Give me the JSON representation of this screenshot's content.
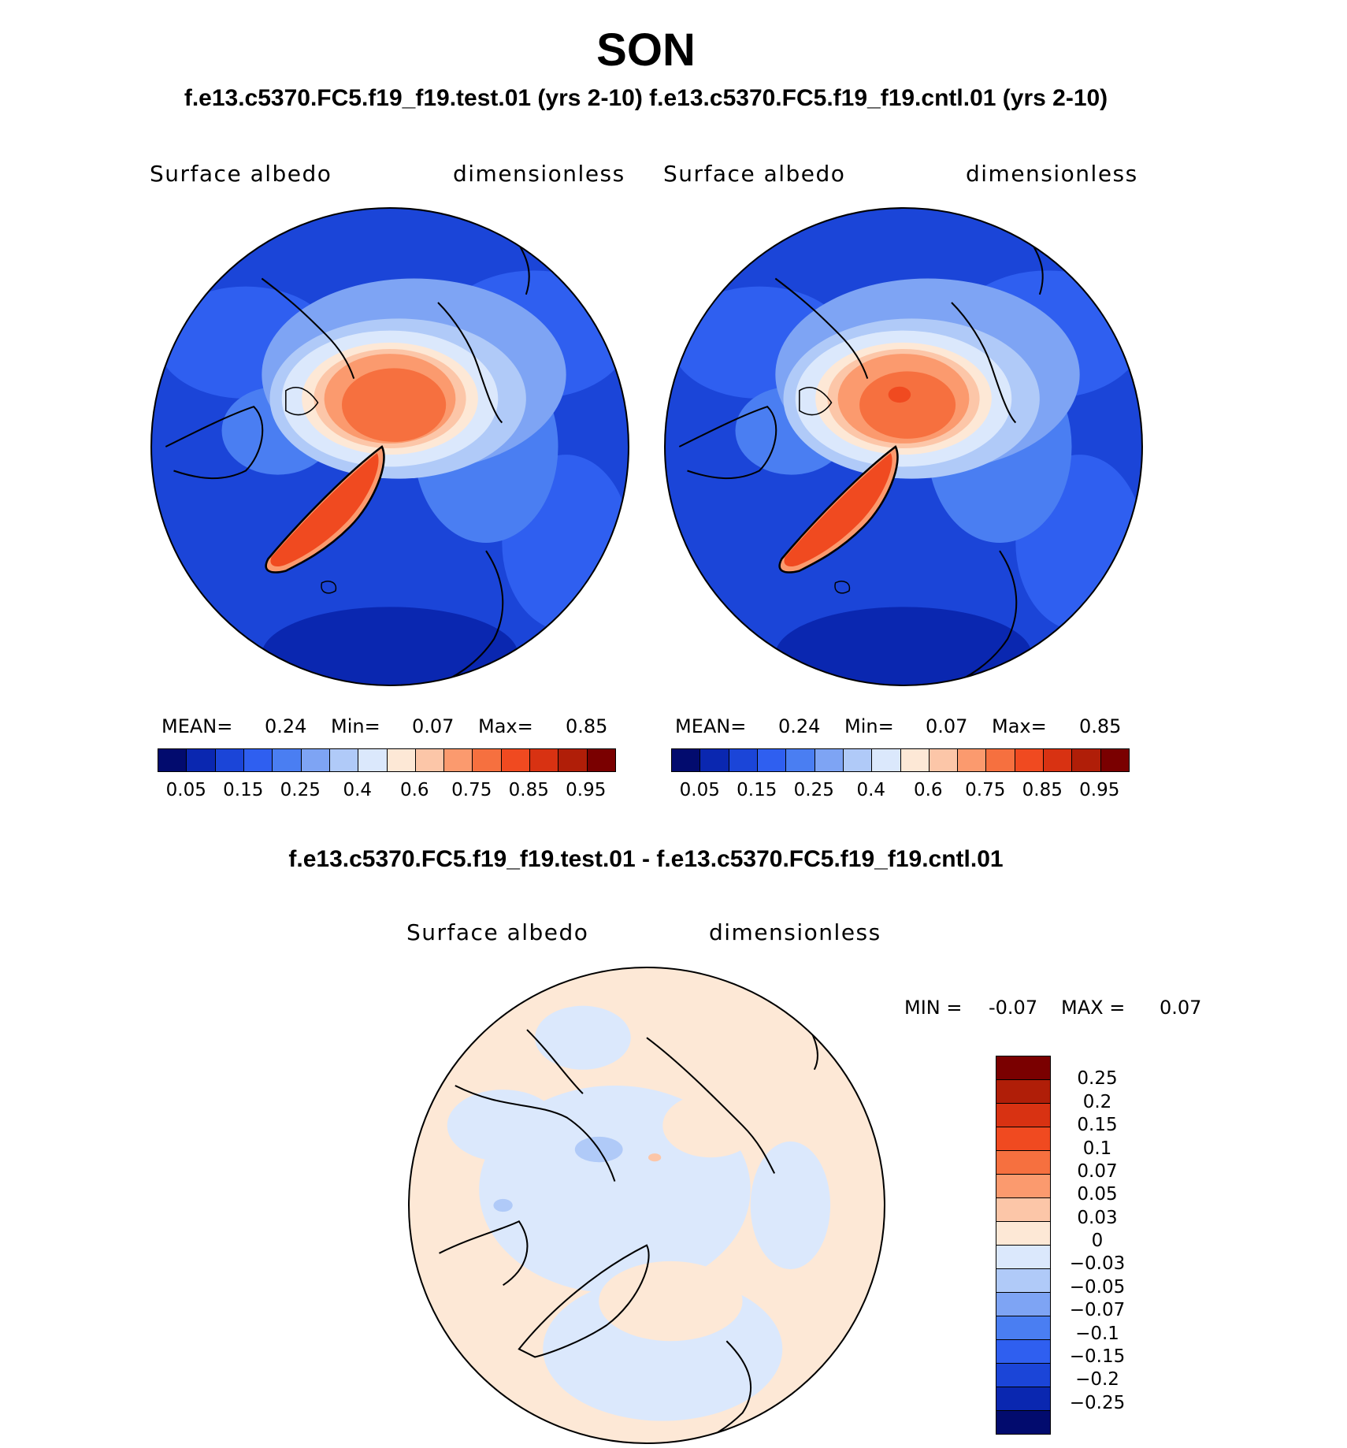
{
  "figure": {
    "season": "SON",
    "cases_title": "f.e13.c5370.FC5.f19_f19.test.01 (yrs 2-10) f.e13.c5370.FC5.f19_f19.cntl.01 (yrs 2-10)",
    "diff_title": "f.e13.c5370.FC5.f19_f19.test.01 - f.e13.c5370.FC5.f19_f19.cntl.01"
  },
  "panels": [
    {
      "variable": "Surface albedo",
      "units": "dimensionless",
      "stats": {
        "mean_label": "MEAN=",
        "mean": "0.24",
        "min_label": "Min=",
        "min": "0.07",
        "max_label": "Max=",
        "max": "0.85"
      }
    },
    {
      "variable": "Surface albedo",
      "units": "dimensionless",
      "stats": {
        "mean_label": "MEAN=",
        "mean": "0.24",
        "min_label": "Min=",
        "min": "0.07",
        "max_label": "Max=",
        "max": "0.85"
      }
    }
  ],
  "colorbar": {
    "colors": [
      "#020b6e",
      "#0a27b0",
      "#1b45d8",
      "#2f5ff0",
      "#4a7ef2",
      "#7ea4f4",
      "#b0caf8",
      "#dbe8fc",
      "#fde8d6",
      "#fcc6a8",
      "#fb9a6e",
      "#f6703f",
      "#f04a20",
      "#d83212",
      "#b01e08",
      "#7a0000"
    ],
    "labels": [
      "0.05",
      "0.15",
      "0.25",
      "0.4",
      "0.6",
      "0.75",
      "0.85",
      "0.95"
    ]
  },
  "difference": {
    "variable": "Surface albedo",
    "units": "dimensionless",
    "min_label": "MIN =",
    "min": "-0.07",
    "max_label": "MAX =",
    "max": "0.07",
    "colors": [
      "#7a0000",
      "#b01e08",
      "#d83212",
      "#f04a20",
      "#f6703f",
      "#fb9a6e",
      "#fcc6a8",
      "#fde8d6",
      "#dbe8fc",
      "#b0caf8",
      "#7ea4f4",
      "#4a7ef2",
      "#2f5ff0",
      "#1b45d8",
      "#0a27b0",
      "#020b6e"
    ],
    "labels": [
      "0.25",
      "0.2",
      "0.15",
      "0.1",
      "0.07",
      "0.05",
      "0.03",
      "0",
      "−0.03",
      "−0.05",
      "−0.07",
      "−0.1",
      "−0.15",
      "−0.2",
      "−0.25"
    ]
  }
}
